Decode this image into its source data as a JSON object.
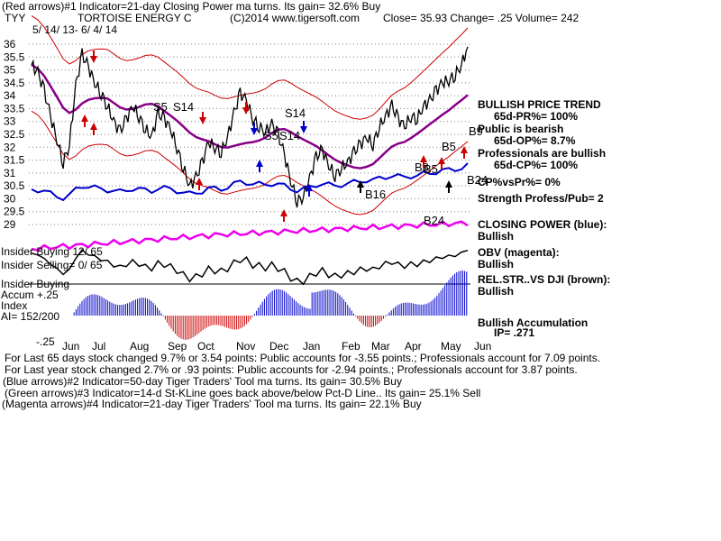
{
  "header": {
    "line1": "(Red arrows)#1 Indicator=21-day Closing Power ma turns.  Its gain= 32.6% Buy",
    "ticker": "TYY",
    "company": "TORTOISE ENERGY C",
    "copyright": "(C)2014 www.tigersoft.com",
    "close_label": "Close=  35.93  Change= .25 Volume= 242",
    "date_range": "5/ 14/ 13- 6/ 4/ 14"
  },
  "panel": {
    "trend": "BULLISH PRICE TREND",
    "pr": "65d-PR%= 100%",
    "public_bearish": "Public is bearish",
    "op": "65d-OP%= 8.7%",
    "professionals": "Professionals are bullish",
    "cp": "65d-CP%= 100%",
    "cpvspr": "CP%vsPr%=  0%",
    "strength": "Strength Profess/Pub= 2",
    "closing_power": "CLOSING POWER (blue):",
    "closing_power_status": "Bullish",
    "obv": "OBV (magenta):",
    "obv_status": "Bullish",
    "relstr": "REL.STR..VS DJI (brown):",
    "relstr_status": "Bullish",
    "accum": "Bullish Accumulation",
    "ip": "IP=  .271"
  },
  "left_labels": {
    "insider_buying_top": "Insider Buying 12/ 65",
    "insider_selling": "Insider Selling= 0/ 65",
    "insider_buying": "Insider Buying",
    "accum_index": "Accum  +.25",
    "index": "Index",
    "ai": "AI= 152/200",
    "minus25": "-.25"
  },
  "signals": [
    "S5",
    "S14",
    "S14",
    "S5",
    "S14",
    "B24",
    "B5",
    "B16",
    "B5",
    "B9",
    "B24",
    "B8"
  ],
  "footer": {
    "l1": "For Last 65 days stock changed  9.7% or  3.54 points:  Public accounts for -3.55 points.;  Professionals account for  7.09 points.",
    "l2": "For Last year stock changed  2.7% or  .93 points:  Public accounts for -2.94 points.;  Professionals account for  3.87 points.",
    "l3": "(Blue arrows)#2 Indicator=50-day Tiger Traders' Tool ma turns.  Its gain= 30.5% Buy",
    "l4": "(Green arrows)#3 Indicator=14-d St-KLine goes back above/below Pct-D Line.. Its gain= 25.1% Sell",
    "l5": "(Magenta arrows)#4 Indicator=21-day Tiger Traders' Tool ma turns.  Its gain= 22.1% Buy"
  },
  "colors": {
    "price": "#000000",
    "band": "#cc0000",
    "ma": "#880088",
    "closing_power": "#0000cc",
    "obv": "#ee00ee",
    "accum_pos": "#0000cc",
    "accum_neg": "#cc0000",
    "grid": "#808080"
  },
  "chart_data": {
    "type": "line",
    "title": "TORTOISE ENERGY C",
    "ylim": [
      29,
      36
    ],
    "yticks": [
      "36",
      "35.5",
      "35",
      "34.5",
      "34",
      "33.5",
      "33",
      "32.5",
      "32",
      "31.5",
      "31",
      "30.5",
      "30",
      "29.5",
      "29"
    ],
    "xticks": [
      "Jun",
      "Jul",
      "Aug",
      "Sep",
      "Oct",
      "Nov",
      "Dec",
      "Jan",
      "Feb",
      "Mar",
      "Apr",
      "May",
      "Jun"
    ],
    "price_series": {
      "close": [
        35.2,
        34.9,
        34.2,
        33.2,
        32.3,
        31.4,
        32.1,
        34.4,
        35.6,
        35.1,
        34.5,
        34.1,
        33.6,
        33.0,
        32.6,
        33.1,
        33.6,
        33.2,
        32.7,
        32.4,
        33.3,
        33.1,
        32.7,
        32.0,
        31.2,
        30.5,
        30.8,
        31.4,
        32.2,
        32.0,
        31.8,
        32.4,
        33.3,
        34.1,
        33.8,
        33.1,
        32.8,
        32.6,
        32.9,
        32.5,
        31.7,
        30.7,
        29.9,
        30.1,
        30.8,
        31.6,
        31.9,
        31.3,
        30.9,
        31.2,
        31.4,
        31.8,
        32.1,
        32.4,
        32.1,
        32.8,
        33.2,
        33.6,
        33.1,
        32.8,
        33.2,
        33.1,
        33.6,
        33.8,
        34.2,
        34.5,
        34.6,
        34.8,
        35.2,
        35.9
      ]
    },
    "series": [
      {
        "name": "CLOSING POWER (blue):",
        "color": "#0000cc"
      },
      {
        "name": "OBV (magenta):",
        "color": "#ee00ee"
      },
      {
        "name": "REL.STR..VS DJI (brown):"
      }
    ]
  }
}
